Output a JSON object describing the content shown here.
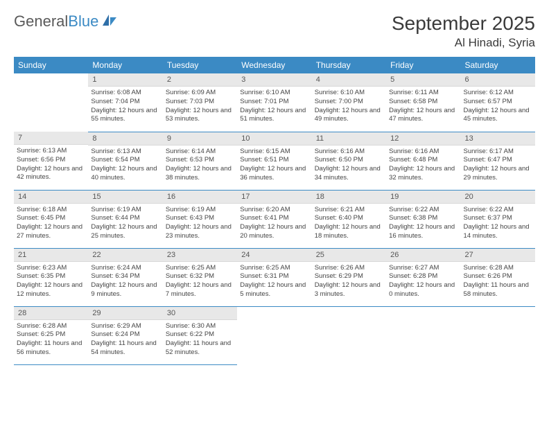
{
  "brand": {
    "name1": "General",
    "name2": "Blue"
  },
  "title": "September 2025",
  "location": "Al Hinadi, Syria",
  "colors": {
    "header_bg": "#3b8ac4",
    "header_fg": "#ffffff",
    "daynum_bg": "#e8e8e8",
    "row_divider": "#3b8ac4",
    "text": "#444444"
  },
  "weekdays": [
    "Sunday",
    "Monday",
    "Tuesday",
    "Wednesday",
    "Thursday",
    "Friday",
    "Saturday"
  ],
  "grid": [
    [
      null,
      {
        "n": "1",
        "sr": "6:08 AM",
        "ss": "7:04 PM",
        "dl": "12 hours and 55 minutes."
      },
      {
        "n": "2",
        "sr": "6:09 AM",
        "ss": "7:03 PM",
        "dl": "12 hours and 53 minutes."
      },
      {
        "n": "3",
        "sr": "6:10 AM",
        "ss": "7:01 PM",
        "dl": "12 hours and 51 minutes."
      },
      {
        "n": "4",
        "sr": "6:10 AM",
        "ss": "7:00 PM",
        "dl": "12 hours and 49 minutes."
      },
      {
        "n": "5",
        "sr": "6:11 AM",
        "ss": "6:58 PM",
        "dl": "12 hours and 47 minutes."
      },
      {
        "n": "6",
        "sr": "6:12 AM",
        "ss": "6:57 PM",
        "dl": "12 hours and 45 minutes."
      }
    ],
    [
      {
        "n": "7",
        "sr": "6:13 AM",
        "ss": "6:56 PM",
        "dl": "12 hours and 42 minutes."
      },
      {
        "n": "8",
        "sr": "6:13 AM",
        "ss": "6:54 PM",
        "dl": "12 hours and 40 minutes."
      },
      {
        "n": "9",
        "sr": "6:14 AM",
        "ss": "6:53 PM",
        "dl": "12 hours and 38 minutes."
      },
      {
        "n": "10",
        "sr": "6:15 AM",
        "ss": "6:51 PM",
        "dl": "12 hours and 36 minutes."
      },
      {
        "n": "11",
        "sr": "6:16 AM",
        "ss": "6:50 PM",
        "dl": "12 hours and 34 minutes."
      },
      {
        "n": "12",
        "sr": "6:16 AM",
        "ss": "6:48 PM",
        "dl": "12 hours and 32 minutes."
      },
      {
        "n": "13",
        "sr": "6:17 AM",
        "ss": "6:47 PM",
        "dl": "12 hours and 29 minutes."
      }
    ],
    [
      {
        "n": "14",
        "sr": "6:18 AM",
        "ss": "6:45 PM",
        "dl": "12 hours and 27 minutes."
      },
      {
        "n": "15",
        "sr": "6:19 AM",
        "ss": "6:44 PM",
        "dl": "12 hours and 25 minutes."
      },
      {
        "n": "16",
        "sr": "6:19 AM",
        "ss": "6:43 PM",
        "dl": "12 hours and 23 minutes."
      },
      {
        "n": "17",
        "sr": "6:20 AM",
        "ss": "6:41 PM",
        "dl": "12 hours and 20 minutes."
      },
      {
        "n": "18",
        "sr": "6:21 AM",
        "ss": "6:40 PM",
        "dl": "12 hours and 18 minutes."
      },
      {
        "n": "19",
        "sr": "6:22 AM",
        "ss": "6:38 PM",
        "dl": "12 hours and 16 minutes."
      },
      {
        "n": "20",
        "sr": "6:22 AM",
        "ss": "6:37 PM",
        "dl": "12 hours and 14 minutes."
      }
    ],
    [
      {
        "n": "21",
        "sr": "6:23 AM",
        "ss": "6:35 PM",
        "dl": "12 hours and 12 minutes."
      },
      {
        "n": "22",
        "sr": "6:24 AM",
        "ss": "6:34 PM",
        "dl": "12 hours and 9 minutes."
      },
      {
        "n": "23",
        "sr": "6:25 AM",
        "ss": "6:32 PM",
        "dl": "12 hours and 7 minutes."
      },
      {
        "n": "24",
        "sr": "6:25 AM",
        "ss": "6:31 PM",
        "dl": "12 hours and 5 minutes."
      },
      {
        "n": "25",
        "sr": "6:26 AM",
        "ss": "6:29 PM",
        "dl": "12 hours and 3 minutes."
      },
      {
        "n": "26",
        "sr": "6:27 AM",
        "ss": "6:28 PM",
        "dl": "12 hours and 0 minutes."
      },
      {
        "n": "27",
        "sr": "6:28 AM",
        "ss": "6:26 PM",
        "dl": "11 hours and 58 minutes."
      }
    ],
    [
      {
        "n": "28",
        "sr": "6:28 AM",
        "ss": "6:25 PM",
        "dl": "11 hours and 56 minutes."
      },
      {
        "n": "29",
        "sr": "6:29 AM",
        "ss": "6:24 PM",
        "dl": "11 hours and 54 minutes."
      },
      {
        "n": "30",
        "sr": "6:30 AM",
        "ss": "6:22 PM",
        "dl": "11 hours and 52 minutes."
      },
      null,
      null,
      null,
      null
    ]
  ],
  "labels": {
    "sunrise": "Sunrise:",
    "sunset": "Sunset:",
    "daylight": "Daylight:"
  }
}
